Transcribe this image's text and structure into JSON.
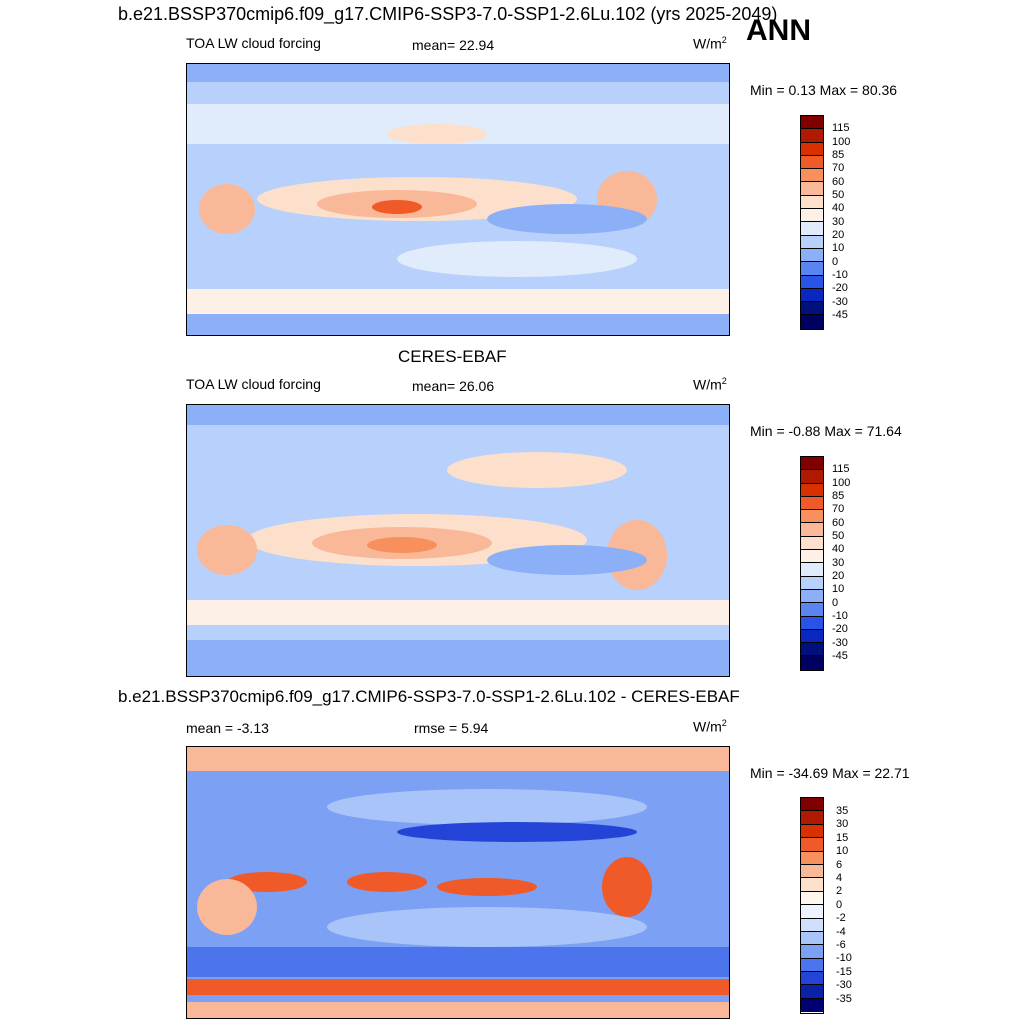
{
  "main_title": "b.e21.BSSP370cmip6.f09_g17.CMIP6-SSP3-7.0-SSP1-2.6Lu.102 (yrs 2025-2049)",
  "season": "ANN",
  "panels": [
    {
      "title": "",
      "left": "TOA LW cloud forcing",
      "center": "mean=  22.94",
      "unit": "W/m",
      "unit_sup": "2",
      "minmax": "Min =   0.13 Max =  80.36",
      "levels": [
        "115",
        "100",
        "85",
        "70",
        "60",
        "50",
        "40",
        "30",
        "20",
        "10",
        "0",
        "-10",
        "-20",
        "-30",
        "-45"
      ]
    },
    {
      "title": "CERES-EBAF",
      "left": "TOA LW cloud forcing",
      "center": "mean=  26.06",
      "unit": "W/m",
      "unit_sup": "2",
      "minmax": "Min =  -0.88 Max =  71.64",
      "levels": [
        "115",
        "100",
        "85",
        "70",
        "60",
        "50",
        "40",
        "30",
        "20",
        "10",
        "0",
        "-10",
        "-20",
        "-30",
        "-45"
      ]
    },
    {
      "title": "b.e21.BSSP370cmip6.f09_g17.CMIP6-SSP3-7.0-SSP1-2.6Lu.102 - CERES-EBAF",
      "left": "mean =  -3.13",
      "center": "rmse =   5.94",
      "unit": "W/m",
      "unit_sup": "2",
      "minmax": "Min = -34.69 Max =  22.71",
      "levels": [
        "35",
        "30",
        "15",
        "10",
        "6",
        "4",
        "2",
        "0",
        "-2",
        "-4",
        "-6",
        "-10",
        "-15",
        "-30",
        "-35"
      ]
    }
  ],
  "colors": {
    "abs_scale": [
      "#800000",
      "#b01a00",
      "#d83000",
      "#f05a28",
      "#f8905e",
      "#f9b898",
      "#fde0cc",
      "#fdf0e6",
      "#e0ecfc",
      "#b8d0fc",
      "#8cb0f8",
      "#5a84f0",
      "#2a54e8",
      "#0a28c0",
      "#00107c",
      "#000060"
    ],
    "diff_scale": [
      "#800000",
      "#b01a00",
      "#d83000",
      "#f05a28",
      "#f8905e",
      "#f9b898",
      "#fde0cc",
      "#fff6ee",
      "#eef4ff",
      "#d0e0fc",
      "#a8c4f8",
      "#7ca0f4",
      "#4c74ec",
      "#2444d8",
      "#0c20a8",
      "#000070"
    ]
  }
}
